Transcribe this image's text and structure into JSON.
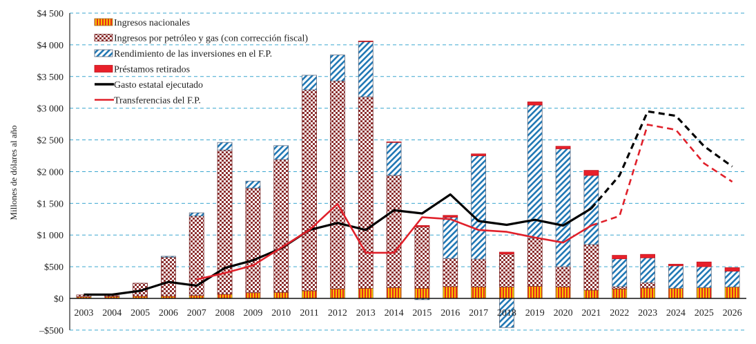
{
  "chart_data": {
    "type": "bar",
    "stacked": true,
    "title": "",
    "xlabel": "",
    "ylabel": "Millones de dólares al año",
    "ylim": [
      -500,
      4500
    ],
    "yticks": [
      -500,
      0,
      500,
      1000,
      1500,
      2000,
      2500,
      3000,
      3500,
      4000,
      4500
    ],
    "ytick_labels": [
      "–$500",
      "$0",
      "$500",
      "$1 000",
      "$1 500",
      "$2 000",
      "$2 500",
      "$3 000",
      "$3 500",
      "$4 000",
      "$4 500"
    ],
    "grid": "horizontal-dashed",
    "legend_position": "top-left",
    "categories": [
      "2003",
      "2004",
      "2005",
      "2006",
      "2007",
      "2008",
      "2009",
      "2010",
      "2011",
      "2012",
      "2013",
      "2014",
      "2015",
      "2016",
      "2017",
      "2018",
      "2019",
      "2020",
      "2021",
      "2022",
      "2023",
      "2024",
      "2025",
      "2026"
    ],
    "series": [
      {
        "name": "Ingresos nacionales",
        "kind": "bar",
        "pattern": "vertical-stripes",
        "colors": [
          "#f5c400",
          "#e8291c"
        ],
        "values": [
          25,
          30,
          35,
          35,
          45,
          65,
          90,
          95,
          120,
          150,
          160,
          170,
          160,
          185,
          180,
          180,
          190,
          180,
          130,
          150,
          165,
          160,
          170,
          180
        ]
      },
      {
        "name": "Ingresos por petróleo y gas (con corrección fiscal)",
        "kind": "bar",
        "pattern": "checkerboard",
        "colors": [
          "#8b2f2f",
          "#ffffff"
        ],
        "values": [
          30,
          15,
          205,
          615,
          1255,
          2275,
          1650,
          2095,
          3170,
          3280,
          3020,
          1770,
          970,
          445,
          440,
          520,
          760,
          320,
          720,
          35,
          85,
          0,
          0,
          0
        ]
      },
      {
        "name": "Rendimiento de las inversiones en el F.P.",
        "kind": "bar",
        "pattern": "diagonal-stripes",
        "colors": [
          "#1f77b4",
          "#ffffff"
        ],
        "values": [
          0,
          0,
          0,
          15,
          50,
          120,
          110,
          220,
          230,
          410,
          870,
          520,
          -20,
          650,
          1630,
          -460,
          2100,
          1860,
          1090,
          440,
          390,
          355,
          330,
          250
        ]
      },
      {
        "name": "Préstamos retirados",
        "kind": "bar",
        "pattern": "solid",
        "colors": [
          "#e8202a"
        ],
        "values": [
          0,
          0,
          0,
          0,
          0,
          0,
          0,
          0,
          0,
          0,
          10,
          10,
          20,
          30,
          30,
          30,
          50,
          40,
          80,
          55,
          55,
          25,
          75,
          55
        ]
      },
      {
        "name": "Gasto estatal ejecutado",
        "kind": "line",
        "color": "#000000",
        "dashed_from": "2021",
        "values": [
          60,
          60,
          120,
          260,
          200,
          480,
          600,
          790,
          1080,
          1190,
          1080,
          1390,
          1340,
          1640,
          1220,
          1160,
          1240,
          1150,
          1420,
          1940,
          2950,
          2880,
          2400,
          2080
        ]
      },
      {
        "name": "Transferencias del F.P.",
        "kind": "line",
        "color": "#e0202a",
        "dashed_from": "2021",
        "values": [
          null,
          null,
          null,
          null,
          300,
          400,
          520,
          800,
          1080,
          1490,
          720,
          720,
          1280,
          1250,
          1080,
          1050,
          960,
          880,
          1150,
          1300,
          2740,
          2660,
          2130,
          1840
        ]
      }
    ]
  }
}
